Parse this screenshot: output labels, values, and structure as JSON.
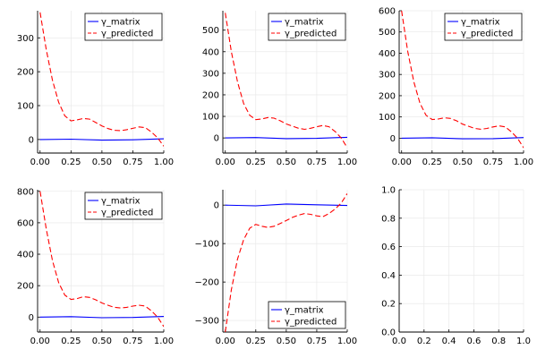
{
  "chart_data": [
    {
      "type": "line",
      "xlim": [
        -0.02,
        1.0
      ],
      "ylim": [
        -40,
        380
      ],
      "xticks": [
        0.0,
        0.25,
        0.5,
        0.75,
        1.0
      ],
      "xtick_labels": [
        "0.00",
        "0.25",
        "0.50",
        "0.75",
        "1.00"
      ],
      "yticks": [
        0,
        100,
        200,
        300
      ],
      "ytick_labels": [
        "0",
        "100",
        "200",
        "300"
      ],
      "grid": true,
      "legend": "top-right",
      "series": [
        {
          "name": "γ_matrix",
          "color": "#0000ff",
          "style": "solid",
          "x": [
            0,
            0.25,
            0.5,
            0.75,
            1.0
          ],
          "y": [
            0,
            1,
            -2,
            -1,
            2
          ]
        },
        {
          "name": "γ_predicted",
          "color": "#ff0000",
          "style": "dashed",
          "x": [
            0.0,
            0.05,
            0.1,
            0.15,
            0.2,
            0.25,
            0.3,
            0.35,
            0.4,
            0.45,
            0.5,
            0.55,
            0.6,
            0.65,
            0.7,
            0.75,
            0.8,
            0.85,
            0.9,
            0.95,
            1.0
          ],
          "y": [
            375,
            265,
            175,
            110,
            70,
            55,
            58,
            62,
            60,
            50,
            40,
            32,
            27,
            26,
            29,
            33,
            37,
            35,
            22,
            5,
            -20
          ]
        }
      ]
    },
    {
      "type": "line",
      "xlim": [
        -0.02,
        1.0
      ],
      "ylim": [
        -70,
        590
      ],
      "xticks": [
        0.0,
        0.25,
        0.5,
        0.75,
        1.0
      ],
      "xtick_labels": [
        "0.00",
        "0.25",
        "0.50",
        "0.75",
        "1.00"
      ],
      "yticks": [
        0,
        100,
        200,
        300,
        400,
        500
      ],
      "ytick_labels": [
        "0",
        "100",
        "200",
        "300",
        "400",
        "500"
      ],
      "grid": true,
      "legend": "top-right",
      "series": [
        {
          "name": "γ_matrix",
          "color": "#0000ff",
          "style": "solid",
          "x": [
            0,
            0.25,
            0.5,
            0.75,
            1.0
          ],
          "y": [
            0,
            2,
            -3,
            -2,
            3
          ]
        },
        {
          "name": "γ_predicted",
          "color": "#ff0000",
          "style": "dashed",
          "x": [
            0.0,
            0.05,
            0.1,
            0.15,
            0.2,
            0.25,
            0.3,
            0.35,
            0.4,
            0.45,
            0.5,
            0.55,
            0.6,
            0.65,
            0.7,
            0.75,
            0.8,
            0.85,
            0.9,
            0.95,
            1.0
          ],
          "y": [
            580,
            400,
            260,
            160,
            105,
            85,
            88,
            95,
            92,
            80,
            65,
            55,
            45,
            40,
            45,
            52,
            58,
            52,
            30,
            0,
            -45
          ]
        }
      ]
    },
    {
      "type": "line",
      "xlim": [
        -0.02,
        1.0
      ],
      "ylim": [
        -70,
        600
      ],
      "xticks": [
        0.0,
        0.25,
        0.5,
        0.75,
        1.0
      ],
      "xtick_labels": [
        "0.00",
        "0.25",
        "0.50",
        "0.75",
        "1.00"
      ],
      "yticks": [
        0,
        100,
        200,
        300,
        400,
        500,
        600
      ],
      "ytick_labels": [
        "0",
        "100",
        "200",
        "300",
        "400",
        "500",
        "600"
      ],
      "grid": true,
      "legend": "top-right",
      "series": [
        {
          "name": "γ_matrix",
          "color": "#0000ff",
          "style": "solid",
          "x": [
            0,
            0.25,
            0.5,
            0.75,
            1.0
          ],
          "y": [
            0,
            2,
            -3,
            -2,
            3
          ]
        },
        {
          "name": "γ_predicted",
          "color": "#ff0000",
          "style": "dashed",
          "x": [
            0.0,
            0.05,
            0.1,
            0.15,
            0.2,
            0.25,
            0.3,
            0.35,
            0.4,
            0.45,
            0.5,
            0.55,
            0.6,
            0.65,
            0.7,
            0.75,
            0.8,
            0.85,
            0.9,
            0.95,
            1.0
          ],
          "y": [
            600,
            410,
            265,
            165,
            108,
            88,
            90,
            96,
            93,
            82,
            66,
            56,
            46,
            42,
            46,
            53,
            58,
            53,
            30,
            0,
            -45
          ]
        }
      ]
    },
    {
      "type": "line",
      "xlim": [
        -0.02,
        1.0
      ],
      "ylim": [
        -95,
        810
      ],
      "xticks": [
        0.0,
        0.25,
        0.5,
        0.75,
        1.0
      ],
      "xtick_labels": [
        "0.00",
        "0.25",
        "0.50",
        "0.75",
        "1.00"
      ],
      "yticks": [
        0,
        200,
        400,
        600,
        800
      ],
      "ytick_labels": [
        "0",
        "200",
        "400",
        "600",
        "800"
      ],
      "grid": true,
      "legend": "top-right",
      "series": [
        {
          "name": "γ_matrix",
          "color": "#0000ff",
          "style": "solid",
          "x": [
            0,
            0.25,
            0.5,
            0.75,
            1.0
          ],
          "y": [
            0,
            3,
            -4,
            -2,
            4
          ]
        },
        {
          "name": "γ_predicted",
          "color": "#ff0000",
          "style": "dashed",
          "x": [
            0.0,
            0.05,
            0.1,
            0.15,
            0.2,
            0.25,
            0.3,
            0.35,
            0.4,
            0.45,
            0.5,
            0.55,
            0.6,
            0.65,
            0.7,
            0.75,
            0.8,
            0.85,
            0.9,
            0.95,
            1.0
          ],
          "y": [
            800,
            560,
            360,
            220,
            140,
            112,
            118,
            130,
            125,
            110,
            90,
            75,
            62,
            58,
            62,
            70,
            76,
            70,
            40,
            0,
            -60
          ]
        }
      ]
    },
    {
      "type": "line",
      "xlim": [
        -0.02,
        1.0
      ],
      "ylim": [
        -330,
        40
      ],
      "xticks": [
        0.0,
        0.25,
        0.5,
        0.75,
        1.0
      ],
      "xtick_labels": [
        "0.00",
        "0.25",
        "0.50",
        "0.75",
        "1.00"
      ],
      "yticks": [
        -300,
        -200,
        -100,
        0
      ],
      "ytick_labels": [
        "−300",
        "−200",
        "−100",
        "0"
      ],
      "grid": true,
      "legend": "bottom-right",
      "series": [
        {
          "name": "γ_matrix",
          "color": "#0000ff",
          "style": "solid",
          "x": [
            0,
            0.25,
            0.5,
            0.75,
            1.0
          ],
          "y": [
            0,
            -2,
            3,
            1,
            -1
          ]
        },
        {
          "name": "γ_predicted",
          "color": "#ff0000",
          "style": "dashed",
          "x": [
            0.0,
            0.05,
            0.1,
            0.15,
            0.2,
            0.25,
            0.3,
            0.35,
            0.4,
            0.45,
            0.5,
            0.55,
            0.6,
            0.65,
            0.7,
            0.75,
            0.8,
            0.85,
            0.9,
            0.95,
            1.0
          ],
          "y": [
            -330,
            -220,
            -140,
            -90,
            -60,
            -50,
            -55,
            -58,
            -55,
            -48,
            -40,
            -32,
            -26,
            -22,
            -24,
            -28,
            -30,
            -22,
            -10,
            5,
            30
          ]
        }
      ]
    },
    {
      "type": "line",
      "xlim": [
        0,
        1
      ],
      "ylim": [
        0,
        1
      ],
      "xticks": [
        0.0,
        0.2,
        0.4,
        0.6,
        0.8,
        1.0
      ],
      "xtick_labels": [
        "0.0",
        "0.2",
        "0.4",
        "0.6",
        "0.8",
        "1.0"
      ],
      "yticks": [
        0.0,
        0.2,
        0.4,
        0.6,
        0.8,
        1.0
      ],
      "ytick_labels": [
        "0.0",
        "0.2",
        "0.4",
        "0.6",
        "0.8",
        "1.0"
      ],
      "grid": true,
      "series": []
    }
  ]
}
